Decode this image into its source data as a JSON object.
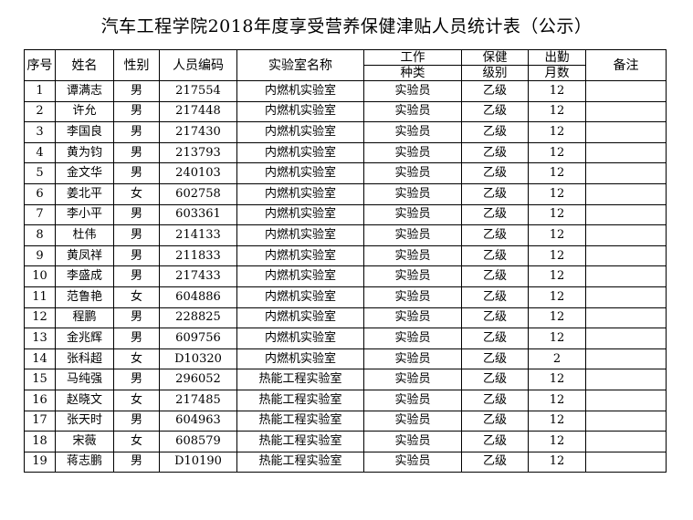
{
  "title": "汽车工程学院2018年度享受营养保健津贴人员统计表（公示）",
  "headers": {
    "index": "序号",
    "name": "姓名",
    "gender": "性别",
    "code": "人员编码",
    "lab": "实验室名称",
    "job_top": "工作",
    "job_bottom": "种类",
    "care_top": "保健",
    "care_bottom": "级别",
    "attend_top": "出勤",
    "attend_bottom": "月数",
    "remark": "备注"
  },
  "rows": [
    [
      "1",
      "谭满志",
      "男",
      "217554",
      "内燃机实验室",
      "实验员",
      "乙级",
      "12",
      ""
    ],
    [
      "2",
      "许允",
      "男",
      "217448",
      "内燃机实验室",
      "实验员",
      "乙级",
      "12",
      ""
    ],
    [
      "3",
      "李国良",
      "男",
      "217430",
      "内燃机实验室",
      "实验员",
      "乙级",
      "12",
      ""
    ],
    [
      "4",
      "黄为钧",
      "男",
      "213793",
      "内燃机实验室",
      "实验员",
      "乙级",
      "12",
      ""
    ],
    [
      "5",
      "金文华",
      "男",
      "240103",
      "内燃机实验室",
      "实验员",
      "乙级",
      "12",
      ""
    ],
    [
      "6",
      "姜北平",
      "女",
      "602758",
      "内燃机实验室",
      "实验员",
      "乙级",
      "12",
      ""
    ],
    [
      "7",
      "李小平",
      "男",
      "603361",
      "内燃机实验室",
      "实验员",
      "乙级",
      "12",
      ""
    ],
    [
      "8",
      "杜伟",
      "男",
      "214133",
      "内燃机实验室",
      "实验员",
      "乙级",
      "12",
      ""
    ],
    [
      "9",
      "黄凤祥",
      "男",
      "211833",
      "内燃机实验室",
      "实验员",
      "乙级",
      "12",
      ""
    ],
    [
      "10",
      "李盛成",
      "男",
      "217433",
      "内燃机实验室",
      "实验员",
      "乙级",
      "12",
      ""
    ],
    [
      "11",
      "范鲁艳",
      "女",
      "604886",
      "内燃机实验室",
      "实验员",
      "乙级",
      "12",
      ""
    ],
    [
      "12",
      "程鹏",
      "男",
      "228825",
      "内燃机实验室",
      "实验员",
      "乙级",
      "12",
      ""
    ],
    [
      "13",
      "金兆辉",
      "男",
      "609756",
      "内燃机实验室",
      "实验员",
      "乙级",
      "12",
      ""
    ],
    [
      "14",
      "张科超",
      "女",
      "D10320",
      "内燃机实验室",
      "实验员",
      "乙级",
      "2",
      ""
    ],
    [
      "15",
      "马纯强",
      "男",
      "296052",
      "热能工程实验室",
      "实验员",
      "乙级",
      "12",
      ""
    ],
    [
      "16",
      "赵晓文",
      "女",
      "217485",
      "热能工程实验室",
      "实验员",
      "乙级",
      "12",
      ""
    ],
    [
      "17",
      "张天时",
      "男",
      "604963",
      "热能工程实验室",
      "实验员",
      "乙级",
      "12",
      ""
    ],
    [
      "18",
      "宋薇",
      "女",
      "608579",
      "热能工程实验室",
      "实验员",
      "乙级",
      "12",
      ""
    ],
    [
      "19",
      "蒋志鹏",
      "男",
      "D10190",
      "热能工程实验室",
      "实验员",
      "乙级",
      "12",
      ""
    ]
  ]
}
